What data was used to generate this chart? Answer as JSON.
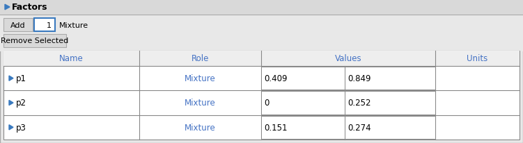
{
  "title": "Factors",
  "bg_color": "#e8e8e8",
  "white": "#ffffff",
  "blue_triangle_color": "#3a7abf",
  "rows": [
    {
      "name": "p1",
      "role": "Mixture",
      "val1": "0.409",
      "val2": "0.849",
      "units": ""
    },
    {
      "name": "p2",
      "role": "Mixture",
      "val1": "0",
      "val2": "0.252",
      "units": ""
    },
    {
      "name": "p3",
      "role": "Mixture",
      "val1": "0.151",
      "val2": "0.274",
      "units": ""
    }
  ],
  "add_button_label": "Add",
  "spinbox_value": "1",
  "mixture_label": "Mixture",
  "remove_button_label": "Remove Selected",
  "border_color": "#aaaaaa",
  "dark_border": "#888888",
  "line_color": "#bbbbbb",
  "header_text_color": "#4a7abf",
  "row_text_color": "#4a7abf"
}
